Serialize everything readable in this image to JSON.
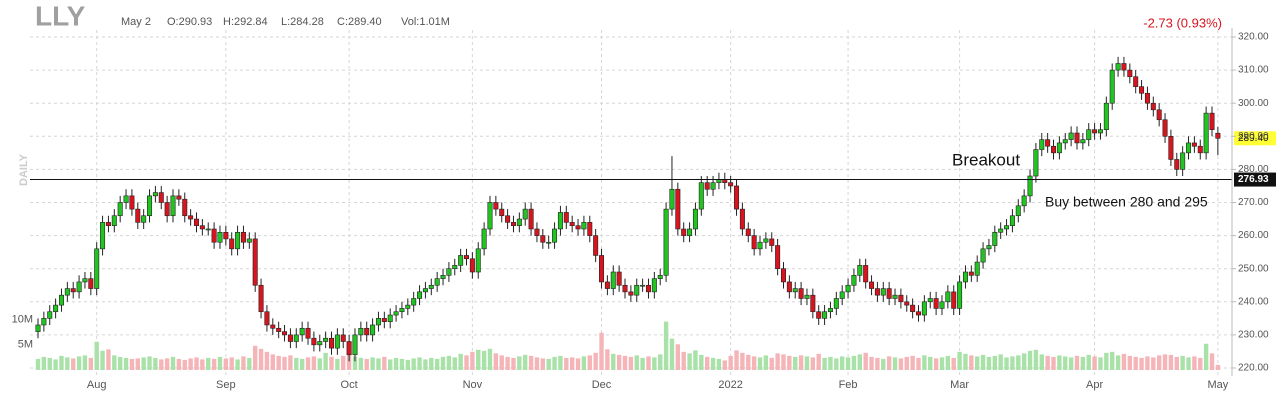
{
  "chart_data": {
    "type": "candlestick",
    "title": "LLY",
    "info": [
      "May 2",
      "O:290.93",
      "H:292.84",
      "L:284.28",
      "C:289.40",
      "Vol:1.01M"
    ],
    "change": "-2.73 (0.93%)",
    "period": "DAILY",
    "annotations": [
      "Breakout",
      "Buy between 280 and 295"
    ],
    "up_color": "#22c422",
    "down_color": "#d8141e",
    "volume_up_color": "#a9e2a9",
    "volume_down_color": "#f5b5b8",
    "grid": true,
    "ylim": [
      220,
      320
    ],
    "yticks": [
      {
        "value": 220,
        "label": "220.00"
      },
      {
        "value": 230,
        "label": "230.00"
      },
      {
        "value": 240,
        "label": "240.00"
      },
      {
        "value": 250,
        "label": "250.00"
      },
      {
        "value": 260,
        "label": "260.00"
      },
      {
        "value": 270,
        "label": "270.00"
      },
      {
        "value": 280,
        "label": "280.00"
      },
      {
        "value": 290,
        "label": "290.00"
      },
      {
        "value": 300,
        "label": "300.00"
      },
      {
        "value": 310,
        "label": "310.00"
      },
      {
        "value": 320,
        "label": "320.00"
      }
    ],
    "volume_lim": [
      0,
      66
    ],
    "volume_ticks": [
      {
        "value": 5,
        "label": "5M"
      },
      {
        "value": 10,
        "label": "10M"
      }
    ],
    "last_price": {
      "value": 289.4,
      "label": "289.40"
    },
    "level": {
      "value": 276.93,
      "label": "276.93"
    },
    "categories": [
      null,
      null,
      null,
      null,
      null,
      null,
      null,
      null,
      null,
      null,
      "Aug",
      null,
      null,
      null,
      null,
      null,
      null,
      null,
      null,
      null,
      null,
      null,
      null,
      null,
      null,
      null,
      null,
      null,
      null,
      null,
      null,
      null,
      "Sep",
      null,
      null,
      null,
      null,
      null,
      null,
      null,
      null,
      null,
      null,
      null,
      null,
      null,
      null,
      null,
      null,
      null,
      null,
      null,
      null,
      "Oct",
      null,
      null,
      null,
      null,
      null,
      null,
      null,
      null,
      null,
      null,
      null,
      null,
      null,
      null,
      null,
      null,
      null,
      null,
      null,
      null,
      "Nov",
      null,
      null,
      null,
      null,
      null,
      null,
      null,
      null,
      null,
      null,
      null,
      null,
      null,
      null,
      null,
      null,
      null,
      null,
      null,
      null,
      null,
      "Dec",
      null,
      null,
      null,
      null,
      null,
      null,
      null,
      null,
      null,
      null,
      null,
      null,
      null,
      null,
      null,
      null,
      null,
      null,
      null,
      null,
      null,
      "2022",
      null,
      null,
      null,
      null,
      null,
      null,
      null,
      null,
      null,
      null,
      null,
      null,
      null,
      null,
      null,
      null,
      null,
      null,
      null,
      "Feb",
      null,
      null,
      null,
      null,
      null,
      null,
      null,
      null,
      null,
      null,
      null,
      null,
      null,
      null,
      null,
      null,
      null,
      null,
      "Mar",
      null,
      null,
      null,
      null,
      null,
      null,
      null,
      null,
      null,
      null,
      null,
      null,
      null,
      null,
      null,
      null,
      null,
      null,
      null,
      null,
      null,
      null,
      "Apr",
      null,
      null,
      null,
      null,
      null,
      null,
      null,
      null,
      null,
      null,
      null,
      null,
      null,
      null,
      null,
      null,
      null,
      null,
      null,
      null,
      "May"
    ],
    "open": [
      231,
      233,
      235,
      237,
      239,
      242,
      244,
      243,
      246,
      247,
      244,
      256,
      264,
      263,
      266,
      270,
      272,
      268,
      264,
      266,
      272,
      273,
      270,
      266,
      272,
      271,
      266,
      265,
      263,
      262,
      262,
      258,
      261,
      259,
      256,
      261,
      258,
      259,
      245,
      237,
      233,
      232,
      231,
      230,
      228,
      230,
      232,
      229,
      227,
      228,
      229,
      226,
      230,
      228,
      224,
      230,
      232,
      230,
      233,
      235,
      234,
      236,
      237,
      238,
      239,
      241,
      243,
      244,
      245,
      247,
      248,
      250,
      251,
      254,
      253,
      249,
      256,
      262,
      270,
      268,
      266,
      264,
      263,
      265,
      268,
      262,
      260,
      258,
      258,
      262,
      267,
      264,
      263,
      262,
      264,
      260,
      254,
      246,
      244,
      249,
      245,
      243,
      242,
      245,
      245,
      243,
      247,
      248,
      268,
      274,
      262,
      260,
      262,
      268,
      276,
      274,
      276,
      277,
      276,
      275,
      268,
      262,
      260,
      256,
      258,
      259,
      257,
      250,
      246,
      243,
      244,
      241,
      242,
      237,
      235,
      237,
      238,
      241,
      243,
      245,
      248,
      251,
      246,
      244,
      242,
      244,
      241,
      242,
      240,
      239,
      237,
      236,
      240,
      241,
      238,
      240,
      243,
      238,
      246,
      249,
      248,
      252,
      256,
      257,
      261,
      262,
      263,
      266,
      269,
      272,
      278,
      286,
      289,
      287,
      285,
      288,
      289,
      291,
      288,
      289,
      292,
      291,
      292,
      300,
      310,
      312,
      310,
      308,
      305,
      303,
      300,
      298,
      295,
      290,
      283,
      280,
      285,
      288,
      287,
      285,
      297,
      290.93
    ],
    "high": [
      235,
      237,
      239,
      241,
      244,
      246,
      246,
      248,
      249,
      249,
      258,
      266,
      266,
      268,
      272,
      274,
      274,
      270,
      268,
      274,
      275,
      275,
      272,
      274,
      274,
      273,
      268,
      267,
      265,
      264,
      264,
      263,
      263,
      261,
      263,
      263,
      261,
      261,
      247,
      239,
      235,
      234,
      233,
      232,
      232,
      234,
      234,
      231,
      230,
      231,
      231,
      232,
      232,
      230,
      232,
      234,
      234,
      235,
      237,
      237,
      238,
      239,
      240,
      241,
      243,
      245,
      246,
      247,
      249,
      250,
      252,
      253,
      256,
      256,
      255,
      258,
      264,
      272,
      272,
      270,
      268,
      266,
      267,
      270,
      270,
      264,
      262,
      260,
      264,
      269,
      269,
      266,
      265,
      266,
      266,
      262,
      256,
      248,
      251,
      251,
      247,
      245,
      247,
      247,
      247,
      249,
      250,
      270,
      284,
      276,
      264,
      264,
      270,
      278,
      278,
      278,
      279,
      279,
      278,
      277,
      270,
      264,
      262,
      260,
      261,
      261,
      259,
      252,
      248,
      246,
      246,
      244,
      244,
      239,
      239,
      240,
      243,
      245,
      247,
      250,
      253,
      253,
      248,
      246,
      246,
      246,
      244,
      244,
      242,
      241,
      239,
      242,
      243,
      243,
      242,
      245,
      245,
      248,
      251,
      251,
      254,
      258,
      259,
      263,
      264,
      265,
      268,
      271,
      274,
      280,
      288,
      291,
      291,
      289,
      290,
      291,
      293,
      293,
      291,
      294,
      294,
      294,
      302,
      312,
      314,
      314,
      312,
      310,
      307,
      305,
      302,
      300,
      297,
      292,
      285,
      287,
      290,
      290,
      289,
      299,
      299,
      292.84
    ],
    "low": [
      229,
      231,
      233,
      235,
      237,
      240,
      241,
      241,
      244,
      242,
      242,
      254,
      261,
      261,
      264,
      268,
      266,
      262,
      262,
      264,
      270,
      268,
      264,
      264,
      269,
      264,
      263,
      261,
      260,
      260,
      256,
      256,
      257,
      254,
      254,
      256,
      256,
      243,
      235,
      231,
      230,
      229,
      228,
      226,
      226,
      228,
      227,
      225,
      225,
      226,
      224,
      224,
      226,
      222,
      222,
      228,
      228,
      228,
      231,
      232,
      232,
      234,
      235,
      236,
      237,
      239,
      241,
      242,
      243,
      245,
      246,
      248,
      249,
      251,
      247,
      247,
      254,
      260,
      266,
      264,
      262,
      261,
      261,
      263,
      260,
      258,
      256,
      256,
      256,
      260,
      262,
      261,
      260,
      260,
      258,
      252,
      244,
      242,
      242,
      243,
      241,
      240,
      240,
      243,
      241,
      241,
      245,
      246,
      266,
      260,
      258,
      258,
      260,
      266,
      272,
      272,
      274,
      274,
      273,
      266,
      260,
      258,
      254,
      254,
      256,
      255,
      248,
      244,
      241,
      241,
      239,
      239,
      235,
      233,
      233,
      235,
      236,
      239,
      241,
      243,
      246,
      244,
      242,
      240,
      240,
      239,
      239,
      238,
      237,
      235,
      234,
      234,
      238,
      236,
      236,
      238,
      236,
      236,
      244,
      246,
      246,
      250,
      254,
      255,
      259,
      260,
      261,
      264,
      267,
      270,
      276,
      284,
      285,
      283,
      283,
      286,
      287,
      286,
      286,
      287,
      289,
      289,
      290,
      298,
      308,
      308,
      306,
      303,
      301,
      298,
      296,
      293,
      288,
      281,
      278,
      278,
      283,
      285,
      283,
      283,
      290,
      284.28
    ],
    "close": [
      233,
      235,
      237,
      239,
      242,
      244,
      243,
      246,
      247,
      244,
      256,
      264,
      263,
      266,
      270,
      272,
      268,
      264,
      266,
      272,
      273,
      270,
      266,
      272,
      271,
      266,
      265,
      263,
      262,
      262,
      258,
      261,
      259,
      256,
      261,
      258,
      259,
      245,
      237,
      233,
      232,
      231,
      230,
      228,
      230,
      232,
      229,
      227,
      228,
      229,
      226,
      230,
      228,
      224,
      230,
      232,
      230,
      233,
      235,
      234,
      236,
      237,
      238,
      239,
      241,
      243,
      244,
      245,
      247,
      248,
      250,
      251,
      254,
      253,
      249,
      256,
      262,
      270,
      268,
      266,
      264,
      263,
      265,
      268,
      262,
      260,
      258,
      258,
      262,
      267,
      264,
      263,
      262,
      264,
      260,
      254,
      246,
      244,
      249,
      245,
      243,
      242,
      245,
      245,
      243,
      247,
      248,
      268,
      274,
      262,
      260,
      262,
      268,
      276,
      274,
      276,
      277,
      276,
      275,
      268,
      262,
      260,
      256,
      258,
      259,
      257,
      250,
      246,
      243,
      244,
      241,
      242,
      237,
      235,
      237,
      238,
      241,
      243,
      245,
      248,
      251,
      246,
      244,
      242,
      244,
      241,
      242,
      240,
      239,
      237,
      236,
      240,
      241,
      238,
      240,
      243,
      238,
      246,
      249,
      248,
      252,
      256,
      257,
      261,
      262,
      263,
      266,
      269,
      272,
      278,
      286,
      289,
      287,
      285,
      288,
      289,
      291,
      288,
      289,
      292,
      291,
      292,
      300,
      310,
      312,
      310,
      308,
      305,
      303,
      300,
      298,
      295,
      290,
      283,
      280,
      285,
      288,
      287,
      285,
      297,
      292,
      289.4
    ],
    "volume": [
      2.2,
      2.6,
      2.4,
      2.1,
      2.8,
      2.5,
      2.3,
      2.7,
      2.9,
      2.4,
      5.6,
      3.8,
      4.1,
      2.9,
      2.6,
      2.4,
      2.2,
      2.3,
      2.5,
      2.7,
      2.4,
      2.1,
      2.3,
      2.6,
      2.2,
      2.0,
      2.3,
      2.5,
      2.1,
      2.4,
      2.2,
      2.6,
      2.3,
      2.5,
      2.1,
      2.7,
      2.4,
      4.8,
      4.2,
      3.6,
      3.1,
      2.8,
      2.6,
      2.9,
      2.4,
      2.2,
      2.5,
      2.7,
      2.3,
      3.4,
      2.6,
      2.2,
      2.8,
      3.0,
      2.7,
      2.4,
      2.2,
      2.5,
      2.3,
      2.6,
      2.1,
      2.4,
      2.2,
      2.0,
      2.3,
      2.5,
      2.1,
      2.4,
      2.2,
      2.6,
      2.8,
      2.5,
      3.2,
      2.9,
      3.6,
      4.0,
      3.8,
      4.2,
      3.3,
      2.9,
      2.6,
      2.4,
      2.7,
      3.0,
      2.8,
      2.5,
      2.3,
      2.2,
      2.6,
      2.8,
      2.4,
      2.5,
      2.3,
      2.7,
      2.9,
      3.4,
      7.4,
      4.1,
      3.2,
      3.0,
      2.8,
      2.6,
      2.9,
      2.4,
      2.7,
      2.5,
      3.1,
      9.6,
      6.2,
      5.1,
      3.6,
      3.3,
      3.9,
      3.0,
      2.6,
      2.4,
      2.2,
      1.9,
      2.8,
      3.9,
      3.4,
      3.0,
      2.7,
      2.5,
      2.9,
      2.4,
      3.3,
      3.1,
      2.8,
      2.6,
      2.9,
      2.7,
      2.5,
      3.2,
      2.4,
      2.6,
      2.3,
      2.7,
      2.5,
      2.8,
      3.1,
      3.4,
      2.6,
      2.4,
      2.2,
      2.7,
      2.5,
      2.3,
      2.6,
      2.8,
      2.4,
      2.9,
      2.6,
      2.3,
      2.5,
      2.8,
      2.4,
      3.6,
      3.2,
      2.9,
      2.7,
      3.0,
      2.6,
      2.8,
      3.1,
      2.5,
      2.7,
      2.9,
      3.3,
      3.8,
      4.0,
      3.1,
      2.8,
      2.6,
      2.9,
      2.7,
      2.5,
      2.8,
      2.6,
      3.0,
      2.7,
      2.5,
      3.4,
      3.6,
      2.9,
      3.2,
      2.8,
      2.6,
      2.4,
      2.7,
      2.5,
      2.9,
      3.1,
      3.0,
      2.6,
      2.8,
      2.5,
      2.7,
      2.4,
      5.2,
      3.3,
      1.01
    ]
  }
}
